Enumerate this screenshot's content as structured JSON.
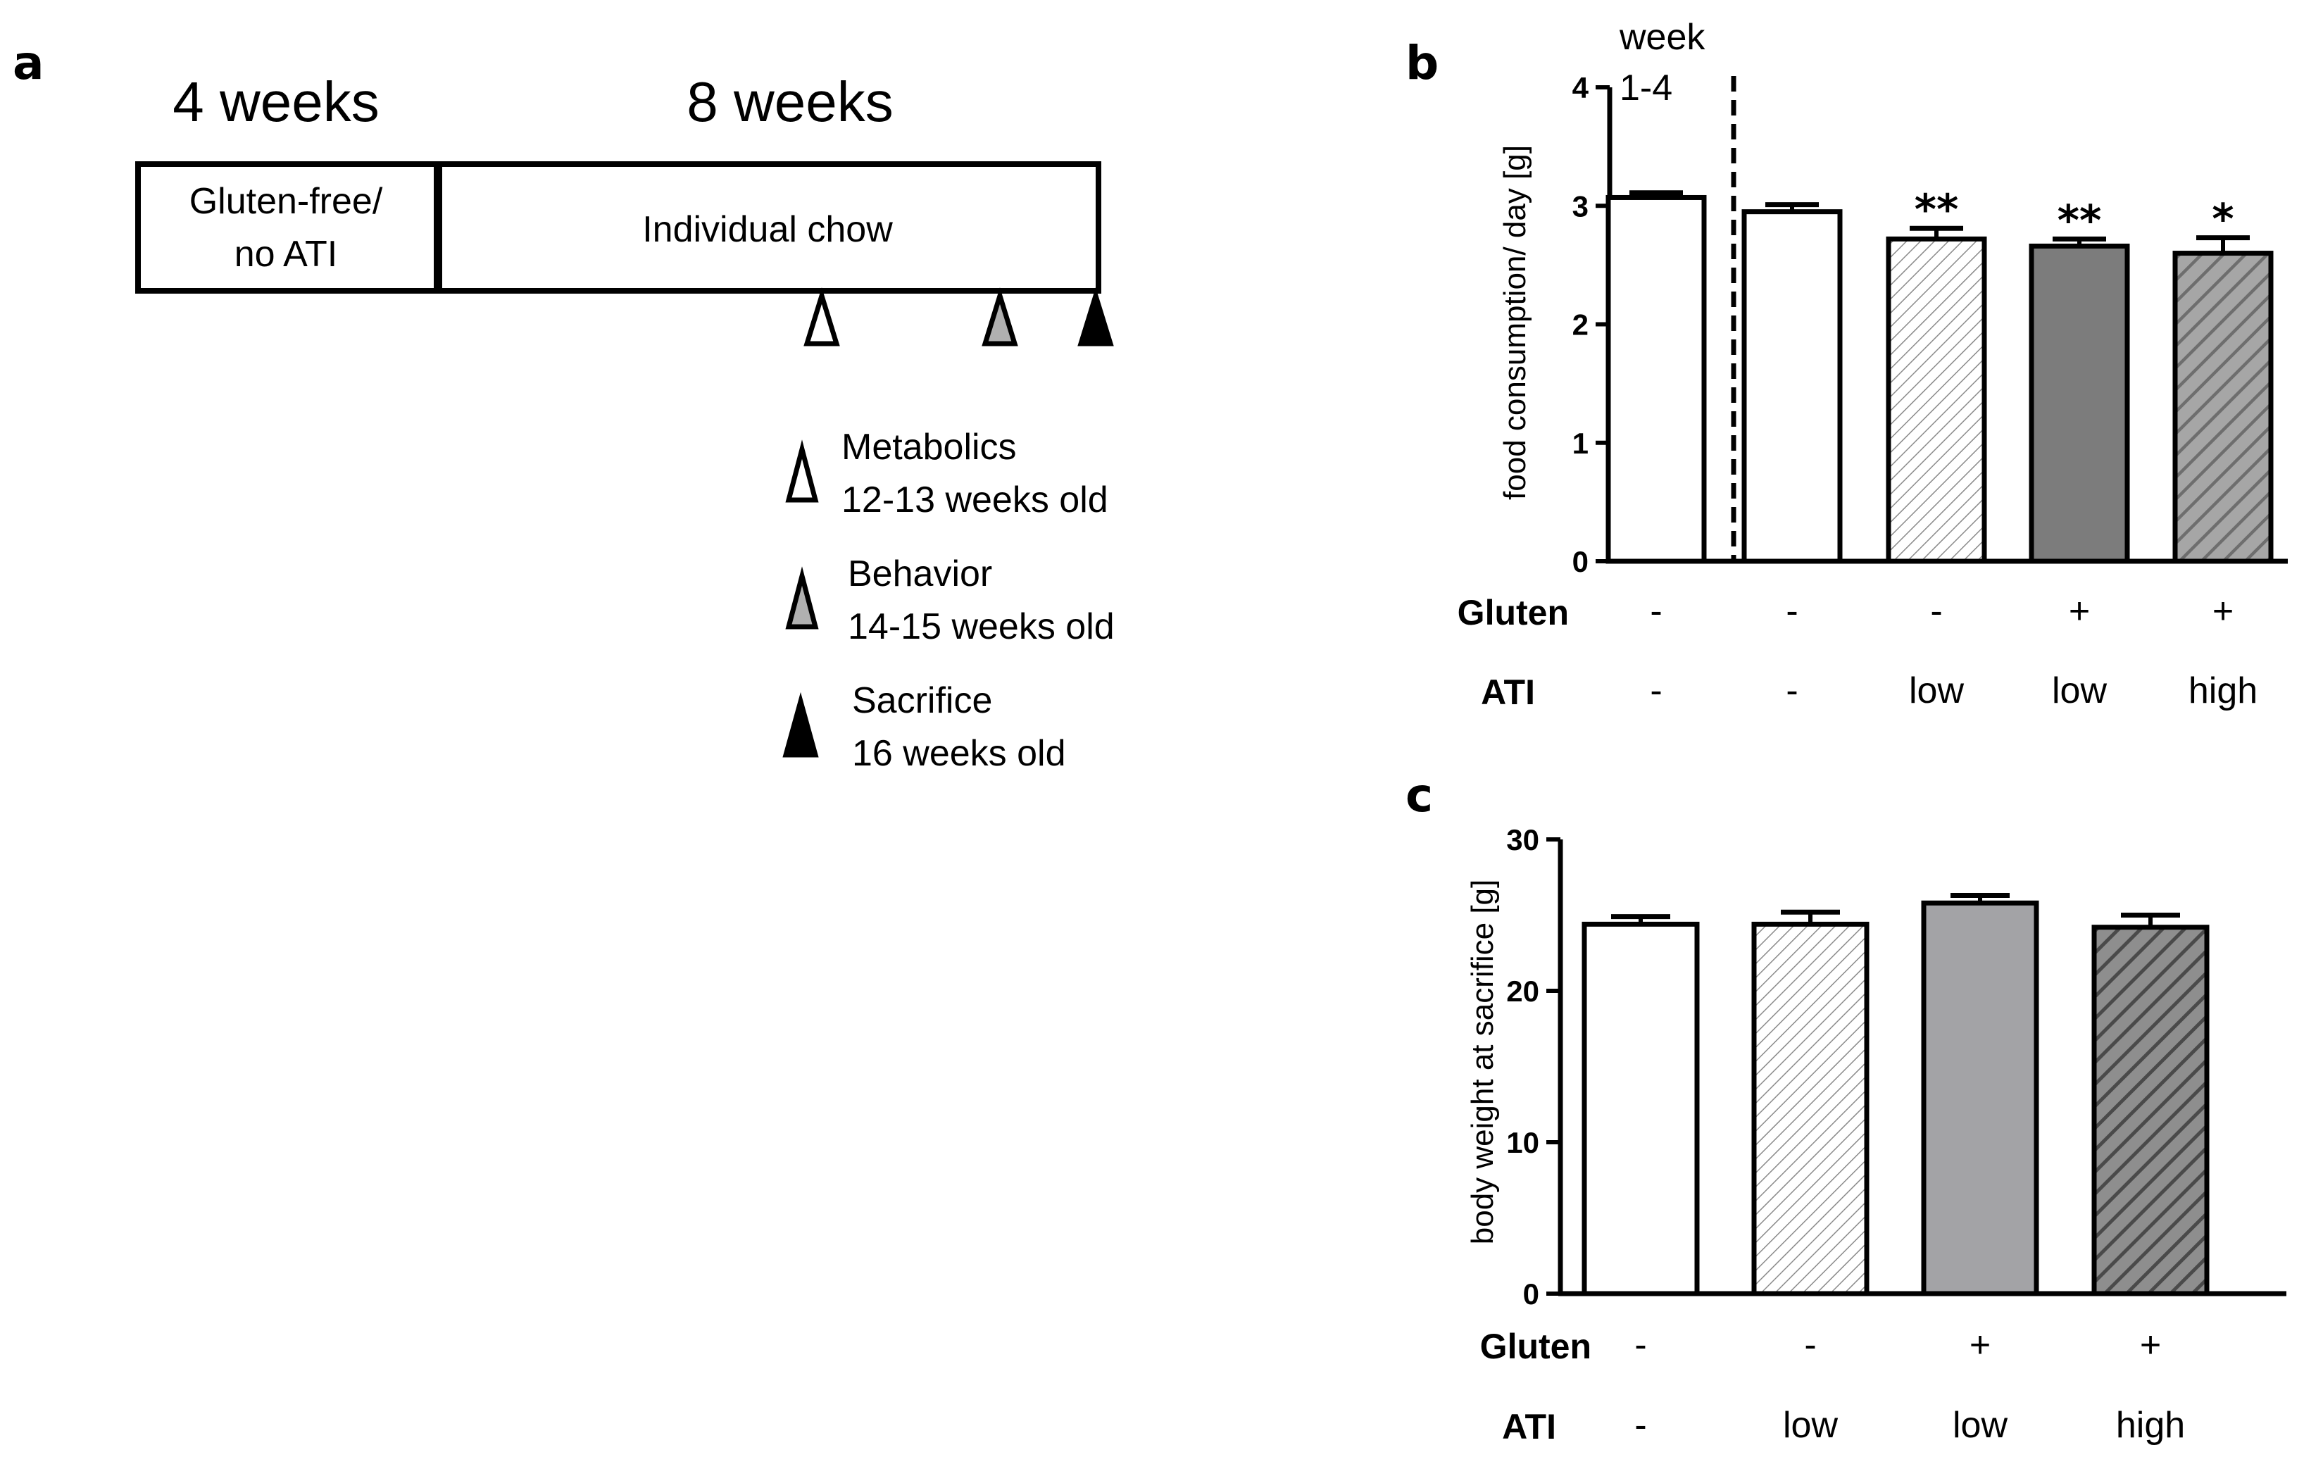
{
  "panels": {
    "a": "a",
    "b": "b",
    "c": "c"
  },
  "timeline": {
    "period1_label": "4 weeks",
    "period2_label": "8 weeks",
    "box1_line1": "Gluten-free/",
    "box1_line2": "no ATI",
    "box2_text": "Individual chow",
    "legend": [
      {
        "name": "Metabolics",
        "age": "12-13 weeks old",
        "icon": "triangle-outline-white",
        "color": "#ffffff"
      },
      {
        "name": "Behavior",
        "age": "14-15 weeks old",
        "icon": "triangle-grey",
        "color": "#b0b0b0"
      },
      {
        "name": "Sacrifice",
        "age": "16 weeks old",
        "icon": "triangle-black",
        "color": "#000000"
      }
    ]
  },
  "chart_data": [
    {
      "type": "bar",
      "panel": "b",
      "ylabel": "food consumption/ day [g]",
      "ylim": [
        0,
        4
      ],
      "yticks": [
        "0",
        "1",
        "2",
        "3",
        "4"
      ],
      "week_label_line1": "week",
      "week_label_line2": "1-4",
      "row_names": {
        "gluten": "Gluten",
        "ati": "ATI"
      },
      "values": [
        3.07,
        2.95,
        2.72,
        2.66,
        2.6
      ],
      "errors": [
        0.04,
        0.06,
        0.09,
        0.06,
        0.13
      ],
      "significance": [
        "",
        "",
        "**",
        "**",
        "*"
      ],
      "gluten": [
        "-",
        "-",
        "-",
        "+",
        "+"
      ],
      "ati": [
        "-",
        "-",
        "low",
        "low",
        "high"
      ],
      "fills": [
        "white",
        "white",
        "hatch-light",
        "dark-grey",
        "hatch-grey"
      ]
    },
    {
      "type": "bar",
      "panel": "c",
      "ylabel": "body weight at sacrifice [g]",
      "ylim": [
        0,
        30
      ],
      "yticks": [
        "0",
        "10",
        "20",
        "30"
      ],
      "row_names": {
        "gluten": "Gluten",
        "ati": "ATI"
      },
      "values": [
        24.4,
        24.4,
        25.8,
        24.2
      ],
      "errors": [
        0.5,
        0.8,
        0.5,
        0.8
      ],
      "gluten": [
        "-",
        "-",
        "+",
        "+"
      ],
      "ati": [
        "-",
        "low",
        "low",
        "high"
      ],
      "fills": [
        "white",
        "hatch-light",
        "light-grey",
        "hatch-dark"
      ]
    }
  ]
}
